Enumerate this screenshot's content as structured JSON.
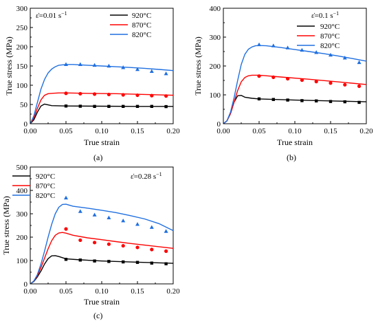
{
  "panels": [
    {
      "id": "a",
      "caption": "(a)",
      "xlabel": "True strain",
      "ylabel": "True stress (MPa)",
      "xticks": [
        "0.00",
        "0.05",
        "0.10",
        "0.15",
        "0.20"
      ],
      "yticks": [
        "0",
        "50",
        "100",
        "150",
        "200",
        "250",
        "300"
      ],
      "annotation_prefix": "ε̇=0.01 s",
      "annotation_sup": "−1",
      "legend": [
        "920°C",
        "870°C",
        "820°C"
      ]
    },
    {
      "id": "b",
      "caption": "(b)",
      "xlabel": "True strain",
      "ylabel": "True stress (MPa)",
      "xticks": [
        "0.00",
        "0.05",
        "0.10",
        "0.15",
        "0.20"
      ],
      "yticks": [
        "0",
        "100",
        "200",
        "300",
        "400"
      ],
      "annotation_prefix": "ε̇=0.1 s",
      "annotation_sup": "−1",
      "legend": [
        "920°C",
        "870°C",
        "820°C"
      ]
    },
    {
      "id": "c",
      "caption": "(c)",
      "xlabel": "True strain",
      "ylabel": "True stress (MPa)",
      "xticks": [
        "0.00",
        "0.05",
        "0.10",
        "0.15",
        "0.20"
      ],
      "yticks": [
        "0",
        "100",
        "200",
        "300",
        "400",
        "500"
      ],
      "annotation_prefix": "ε̇=0.28 s",
      "annotation_sup": "−1",
      "legend": [
        "920°C",
        "870°C",
        "820°C"
      ]
    }
  ],
  "chart_data": [
    {
      "type": "line",
      "xlabel": "True strain",
      "ylabel": "True stress (MPa)",
      "xlim": [
        0,
        0.2
      ],
      "ylim": [
        0,
        300
      ],
      "series": [
        {
          "name": "920°C",
          "color": "#000000",
          "marker": "square",
          "line": [
            [
              0,
              0
            ],
            [
              0.005,
              10
            ],
            [
              0.01,
              30
            ],
            [
              0.015,
              46
            ],
            [
              0.02,
              51
            ],
            [
              0.025,
              49
            ],
            [
              0.03,
              47
            ],
            [
              0.05,
              46
            ],
            [
              0.1,
              45.5
            ],
            [
              0.15,
              45
            ],
            [
              0.2,
              45
            ]
          ],
          "points": [
            [
              0.05,
              46
            ],
            [
              0.07,
              45.5
            ],
            [
              0.09,
              45
            ],
            [
              0.11,
              45
            ],
            [
              0.13,
              45
            ],
            [
              0.15,
              45
            ],
            [
              0.17,
              45
            ],
            [
              0.19,
              44.5
            ]
          ]
        },
        {
          "name": "870°C",
          "color": "#ff0000",
          "marker": "circle",
          "line": [
            [
              0,
              0
            ],
            [
              0.005,
              15
            ],
            [
              0.01,
              40
            ],
            [
              0.015,
              62
            ],
            [
              0.02,
              74
            ],
            [
              0.025,
              78
            ],
            [
              0.03,
              79
            ],
            [
              0.04,
              80
            ],
            [
              0.05,
              80
            ],
            [
              0.08,
              79
            ],
            [
              0.12,
              78
            ],
            [
              0.16,
              76
            ],
            [
              0.2,
              74
            ]
          ],
          "points": [
            [
              0.05,
              79
            ],
            [
              0.07,
              78
            ],
            [
              0.09,
              77
            ],
            [
              0.11,
              76
            ],
            [
              0.13,
              75
            ],
            [
              0.15,
              74
            ],
            [
              0.17,
              73
            ],
            [
              0.19,
              72
            ]
          ]
        },
        {
          "name": "820°C",
          "color": "#1f6fe0",
          "marker": "triangle",
          "line": [
            [
              0,
              0
            ],
            [
              0.005,
              20
            ],
            [
              0.01,
              55
            ],
            [
              0.015,
              90
            ],
            [
              0.02,
              115
            ],
            [
              0.025,
              132
            ],
            [
              0.03,
              142
            ],
            [
              0.035,
              148
            ],
            [
              0.04,
              152
            ],
            [
              0.05,
              154
            ],
            [
              0.06,
              154
            ],
            [
              0.08,
              152
            ],
            [
              0.1,
              150
            ],
            [
              0.12,
              148
            ],
            [
              0.14,
              146
            ],
            [
              0.16,
              144
            ],
            [
              0.18,
              141
            ],
            [
              0.2,
              138
            ]
          ],
          "points": [
            [
              0.05,
              154
            ],
            [
              0.07,
              154
            ],
            [
              0.09,
              152
            ],
            [
              0.11,
              150
            ],
            [
              0.13,
              146
            ],
            [
              0.15,
              141
            ],
            [
              0.17,
              136
            ],
            [
              0.19,
              130
            ]
          ]
        }
      ]
    },
    {
      "type": "line",
      "xlabel": "True strain",
      "ylabel": "True stress (MPa)",
      "xlim": [
        0,
        0.2
      ],
      "ylim": [
        0,
        400
      ],
      "series": [
        {
          "name": "920°C",
          "color": "#000000",
          "marker": "square",
          "line": [
            [
              0,
              0
            ],
            [
              0.005,
              10
            ],
            [
              0.01,
              35
            ],
            [
              0.015,
              75
            ],
            [
              0.02,
              97
            ],
            [
              0.025,
              98
            ],
            [
              0.03,
              92
            ],
            [
              0.04,
              88
            ],
            [
              0.05,
              86
            ],
            [
              0.1,
              82
            ],
            [
              0.15,
              79
            ],
            [
              0.2,
              76
            ]
          ],
          "points": [
            [
              0.05,
              86
            ],
            [
              0.07,
              84
            ],
            [
              0.09,
              82
            ],
            [
              0.11,
              80
            ],
            [
              0.13,
              79
            ],
            [
              0.15,
              77
            ],
            [
              0.17,
              76
            ],
            [
              0.19,
              74
            ]
          ]
        },
        {
          "name": "870°C",
          "color": "#ff0000",
          "marker": "circle",
          "line": [
            [
              0,
              0
            ],
            [
              0.005,
              10
            ],
            [
              0.01,
              35
            ],
            [
              0.015,
              75
            ],
            [
              0.02,
              115
            ],
            [
              0.025,
              145
            ],
            [
              0.03,
              160
            ],
            [
              0.035,
              166
            ],
            [
              0.04,
              168
            ],
            [
              0.05,
              168
            ],
            [
              0.08,
              162
            ],
            [
              0.12,
              154
            ],
            [
              0.16,
              145
            ],
            [
              0.2,
              136
            ]
          ],
          "points": [
            [
              0.05,
              165
            ],
            [
              0.07,
              161
            ],
            [
              0.09,
              156
            ],
            [
              0.11,
              151
            ],
            [
              0.13,
              146
            ],
            [
              0.15,
              141
            ],
            [
              0.17,
              135
            ],
            [
              0.19,
              130
            ]
          ]
        },
        {
          "name": "820°C",
          "color": "#1f6fe0",
          "marker": "triangle",
          "line": [
            [
              0,
              0
            ],
            [
              0.005,
              10
            ],
            [
              0.01,
              40
            ],
            [
              0.015,
              90
            ],
            [
              0.02,
              150
            ],
            [
              0.025,
              205
            ],
            [
              0.03,
              240
            ],
            [
              0.035,
              258
            ],
            [
              0.04,
              266
            ],
            [
              0.045,
              270
            ],
            [
              0.05,
              271
            ],
            [
              0.06,
              270
            ],
            [
              0.08,
              264
            ],
            [
              0.1,
              257
            ],
            [
              0.12,
              250
            ],
            [
              0.14,
              243
            ],
            [
              0.16,
              235
            ],
            [
              0.18,
              226
            ],
            [
              0.2,
              217
            ]
          ],
          "points": [
            [
              0.05,
              274
            ],
            [
              0.07,
              270
            ],
            [
              0.09,
              263
            ],
            [
              0.11,
              255
            ],
            [
              0.13,
              247
            ],
            [
              0.15,
              238
            ],
            [
              0.17,
              228
            ],
            [
              0.19,
              212
            ]
          ]
        }
      ]
    },
    {
      "type": "line",
      "xlabel": "True strain",
      "ylabel": "True stress (MPa)",
      "xlim": [
        0,
        0.2
      ],
      "ylim": [
        0,
        500
      ],
      "series": [
        {
          "name": "920°C",
          "color": "#000000",
          "marker": "square",
          "line": [
            [
              0,
              0
            ],
            [
              0.005,
              10
            ],
            [
              0.01,
              30
            ],
            [
              0.015,
              55
            ],
            [
              0.02,
              85
            ],
            [
              0.025,
              108
            ],
            [
              0.03,
              120
            ],
            [
              0.035,
              121
            ],
            [
              0.04,
              117
            ],
            [
              0.05,
              107
            ],
            [
              0.07,
              103
            ],
            [
              0.1,
              98
            ],
            [
              0.15,
              93
            ],
            [
              0.2,
              88
            ]
          ],
          "points": [
            [
              0.05,
              105
            ],
            [
              0.07,
              102
            ],
            [
              0.09,
              98
            ],
            [
              0.11,
              96
            ],
            [
              0.13,
              94
            ],
            [
              0.15,
              92
            ],
            [
              0.17,
              89
            ],
            [
              0.19,
              86
            ]
          ]
        },
        {
          "name": "870°C",
          "color": "#ff0000",
          "marker": "circle",
          "line": [
            [
              0,
              0
            ],
            [
              0.005,
              12
            ],
            [
              0.01,
              35
            ],
            [
              0.015,
              70
            ],
            [
              0.02,
              110
            ],
            [
              0.025,
              150
            ],
            [
              0.03,
              185
            ],
            [
              0.035,
              208
            ],
            [
              0.04,
              218
            ],
            [
              0.045,
              220
            ],
            [
              0.05,
              217
            ],
            [
              0.06,
              208
            ],
            [
              0.08,
              197
            ],
            [
              0.1,
              189
            ],
            [
              0.12,
              181
            ],
            [
              0.14,
              173
            ],
            [
              0.16,
              166
            ],
            [
              0.18,
              159
            ],
            [
              0.2,
              152
            ]
          ],
          "points": [
            [
              0.05,
              235
            ],
            [
              0.07,
              187
            ],
            [
              0.09,
              177
            ],
            [
              0.11,
              170
            ],
            [
              0.13,
              163
            ],
            [
              0.15,
              156
            ],
            [
              0.17,
              147
            ],
            [
              0.19,
              140
            ]
          ]
        },
        {
          "name": "820°C",
          "color": "#1f6fe0",
          "marker": "triangle",
          "line": [
            [
              0,
              0
            ],
            [
              0.005,
              12
            ],
            [
              0.01,
              40
            ],
            [
              0.015,
              85
            ],
            [
              0.02,
              140
            ],
            [
              0.025,
              200
            ],
            [
              0.03,
              255
            ],
            [
              0.035,
              300
            ],
            [
              0.04,
              328
            ],
            [
              0.045,
              340
            ],
            [
              0.05,
              341
            ],
            [
              0.06,
              332
            ],
            [
              0.08,
              324
            ],
            [
              0.1,
              315
            ],
            [
              0.12,
              305
            ],
            [
              0.14,
              292
            ],
            [
              0.16,
              278
            ],
            [
              0.18,
              258
            ],
            [
              0.2,
              228
            ]
          ],
          "points": [
            [
              0.05,
              368
            ],
            [
              0.07,
              310
            ],
            [
              0.09,
              295
            ],
            [
              0.11,
              283
            ],
            [
              0.13,
              270
            ],
            [
              0.15,
              255
            ],
            [
              0.17,
              242
            ],
            [
              0.19,
              225
            ]
          ]
        }
      ]
    }
  ]
}
